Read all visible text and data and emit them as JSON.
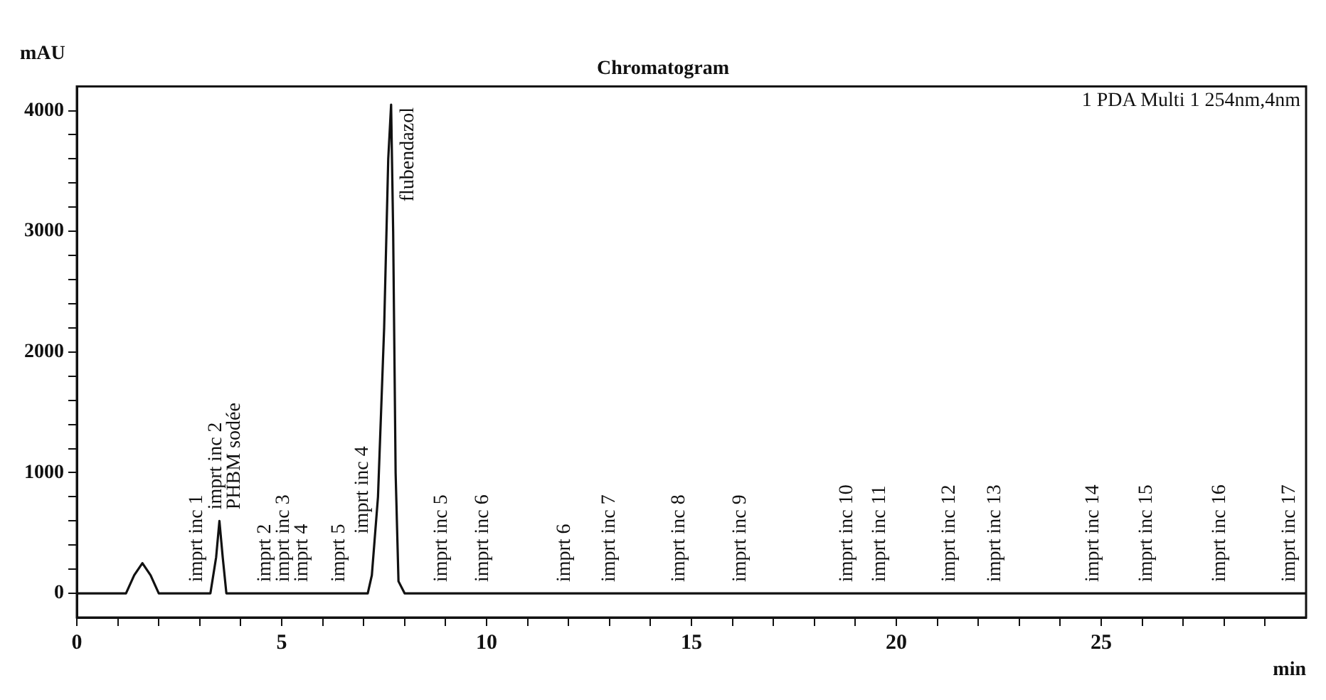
{
  "chart_data": {
    "type": "line",
    "title": "Chromatogram",
    "xlabel": "min",
    "ylabel": "mAU",
    "x": [
      0,
      1.2,
      1.4,
      1.6,
      1.8,
      2.0,
      2.92,
      3.26,
      3.4,
      3.48,
      3.56,
      3.65,
      4.6,
      4.95,
      5.37,
      6.4,
      6.98,
      7.1,
      7.2,
      7.35,
      7.5,
      7.6,
      7.67,
      7.72,
      7.78,
      7.85,
      8.0,
      8.9,
      9.9,
      11.9,
      13.0,
      14.7,
      16.2,
      18.8,
      19.6,
      21.3,
      22.4,
      24.8,
      26.1,
      27.9,
      29.6,
      30
    ],
    "series": [
      {
        "color": "#111111",
        "values": [
          0,
          0,
          150,
          250,
          150,
          0,
          0,
          0,
          300,
          600,
          300,
          0,
          0,
          0,
          0,
          0,
          0,
          0,
          150,
          800,
          2200,
          3600,
          4050,
          3000,
          1000,
          100,
          0,
          0,
          0,
          0,
          0,
          0,
          0,
          0,
          0,
          0,
          0,
          0,
          0,
          0,
          0,
          0
        ]
      }
    ],
    "xlim": [
      0,
      30
    ],
    "xticks": [
      0,
      {
        "value": 1,
        "label": null
      },
      {
        "value": 2,
        "label": null
      },
      {
        "value": 3,
        "label": null
      },
      {
        "value": 4,
        "label": null
      },
      5,
      {
        "value": 6,
        "label": null
      },
      {
        "value": 7,
        "label": null
      },
      {
        "value": 8,
        "label": null
      },
      {
        "value": 9,
        "label": null
      },
      10,
      {
        "value": 11,
        "label": null
      },
      {
        "value": 12,
        "label": null
      },
      {
        "value": 13,
        "label": null
      },
      {
        "value": 14,
        "label": null
      },
      15,
      {
        "value": 16,
        "label": null
      },
      {
        "value": 17,
        "label": null
      },
      {
        "value": 18,
        "label": null
      },
      {
        "value": 19,
        "label": null
      },
      20,
      {
        "value": 21,
        "label": null
      },
      {
        "value": 22,
        "label": null
      },
      {
        "value": 23,
        "label": null
      },
      {
        "value": 24,
        "label": null
      },
      25,
      {
        "value": 26,
        "label": null
      },
      {
        "value": 27,
        "label": null
      },
      {
        "value": 28,
        "label": null
      },
      {
        "value": 29,
        "label": null
      }
    ],
    "ylim": [
      -200,
      4200
    ],
    "yticks": [
      0,
      {
        "value": 200,
        "label": null
      },
      {
        "value": 400,
        "label": null
      },
      {
        "value": 600,
        "label": null
      },
      {
        "value": 800,
        "label": null
      },
      1000,
      {
        "value": 1200,
        "label": null
      },
      {
        "value": 1400,
        "label": null
      },
      {
        "value": 1600,
        "label": null
      },
      {
        "value": 1800,
        "label": null
      },
      2000,
      {
        "value": 2200,
        "label": null
      },
      {
        "value": 2400,
        "label": null
      },
      {
        "value": 2600,
        "label": null
      },
      {
        "value": 2800,
        "label": null
      },
      3000,
      {
        "value": 3200,
        "label": null
      },
      {
        "value": 3400,
        "label": null
      },
      {
        "value": 3600,
        "label": null
      },
      {
        "value": 3800,
        "label": null
      },
      4000
    ],
    "grid": false,
    "marker": "none",
    "line_style": "solid",
    "legend": false,
    "annotations": [
      "1 PDA Multi 1 254nm,4nm",
      {
        "text": "imprt inc 1",
        "x": 2.92,
        "y": 0
      },
      {
        "text": "imprt inc 2",
        "x": 3.4,
        "y": 300
      },
      {
        "text": "PHBM sodée",
        "x": 3.48,
        "y": 600
      },
      {
        "text": "imprt 2",
        "x": 4.6,
        "y": 0
      },
      {
        "text": "imprt inc 3",
        "x": 4.95,
        "y": 0
      },
      {
        "text": "imprt 4",
        "x": 5.37,
        "y": 0
      },
      {
        "text": "imprt 5",
        "x": 6.4,
        "y": 0
      },
      {
        "text": "imprt inc 4",
        "x": 6.98,
        "y": 0
      },
      {
        "text": "flubendazol",
        "x": 7.67,
        "y": 4050
      },
      {
        "text": "imprt inc 5",
        "x": 8.9,
        "y": 0
      },
      {
        "text": "imprt inc 6",
        "x": 9.9,
        "y": 0
      },
      {
        "text": "imprt 6",
        "x": 11.9,
        "y": 0
      },
      {
        "text": "imprt inc 7",
        "x": 13.0,
        "y": 0
      },
      {
        "text": "imprt inc 8",
        "x": 14.7,
        "y": 0
      },
      {
        "text": "imprt inc 9",
        "x": 16.2,
        "y": 0
      },
      {
        "text": "imprt inc 10",
        "x": 18.8,
        "y": 0
      },
      {
        "text": "imprt inc 11",
        "x": 19.6,
        "y": 0
      },
      {
        "text": "imprt inc 12",
        "x": 21.3,
        "y": 0
      },
      {
        "text": "imprt inc 13",
        "x": 22.4,
        "y": 0
      },
      {
        "text": "imprt inc 14",
        "x": 24.8,
        "y": 0
      },
      {
        "text": "imprt inc 15",
        "x": 26.1,
        "y": 0
      },
      {
        "text": "imprt inc 16",
        "x": 27.9,
        "y": 0
      },
      {
        "text": "imprt inc 17",
        "x": 29.6,
        "y": 0
      }
    ]
  }
}
